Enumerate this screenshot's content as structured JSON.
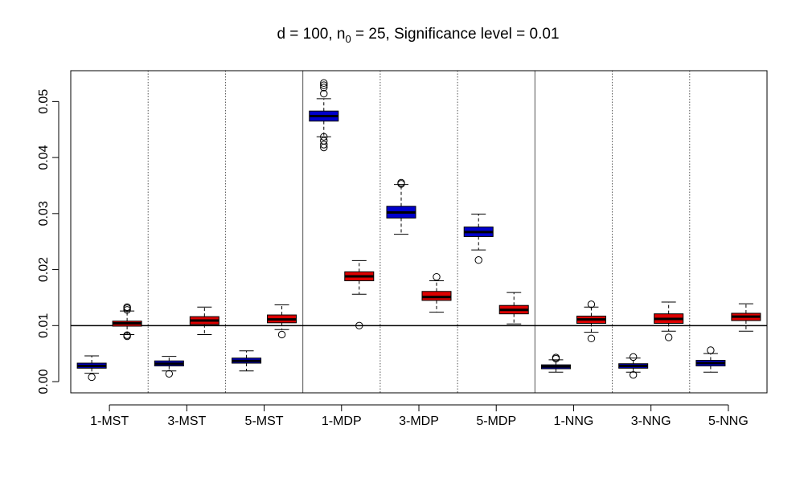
{
  "chart_data": {
    "type": "box",
    "title_parts": {
      "pre": "d = 100, n",
      "sub": "0",
      "post": " = 25, Significance level = 0.01"
    },
    "xlabel": "",
    "ylabel": "",
    "ylim": [
      -0.002,
      0.0555
    ],
    "yticks": [
      0.0,
      0.01,
      0.02,
      0.03,
      0.04,
      0.05
    ],
    "ytick_labels": [
      "0.00",
      "0.01",
      "0.02",
      "0.03",
      "0.04",
      "0.05"
    ],
    "categories": [
      "1-MST",
      "3-MST",
      "5-MST",
      "1-MDP",
      "3-MDP",
      "5-MDP",
      "1-NNG",
      "3-NNG",
      "5-NNG"
    ],
    "reference_line": 0.01,
    "grid": false,
    "series_colors": [
      "#0000cc",
      "#dd0000"
    ],
    "boxes": [
      {
        "category": "1-MST",
        "color": "#0000cc",
        "whisker_low": 0.0015,
        "q1": 0.0024,
        "median": 0.0028,
        "q3": 0.0033,
        "whisker_high": 0.0046,
        "outliers": [
          0.0008
        ]
      },
      {
        "category": "1-MST",
        "color": "#dd0000",
        "whisker_low": 0.0084,
        "q1": 0.0099,
        "median": 0.0104,
        "q3": 0.0108,
        "whisker_high": 0.0126,
        "outliers": [
          0.0081,
          0.0083,
          0.0128,
          0.0131,
          0.0133
        ]
      },
      {
        "category": "3-MST",
        "color": "#0000cc",
        "whisker_low": 0.0019,
        "q1": 0.0028,
        "median": 0.0032,
        "q3": 0.0037,
        "whisker_high": 0.0045,
        "outliers": [
          0.0014
        ]
      },
      {
        "category": "3-MST",
        "color": "#dd0000",
        "whisker_low": 0.0084,
        "q1": 0.0102,
        "median": 0.0109,
        "q3": 0.0116,
        "whisker_high": 0.0133,
        "outliers": []
      },
      {
        "category": "5-MST",
        "color": "#0000cc",
        "whisker_low": 0.0019,
        "q1": 0.0033,
        "median": 0.0037,
        "q3": 0.0042,
        "whisker_high": 0.0055,
        "outliers": []
      },
      {
        "category": "5-MST",
        "color": "#dd0000",
        "whisker_low": 0.0093,
        "q1": 0.0105,
        "median": 0.0111,
        "q3": 0.0119,
        "whisker_high": 0.0137,
        "outliers": [
          0.0084
        ]
      },
      {
        "category": "1-MDP",
        "color": "#0000cc",
        "whisker_low": 0.0437,
        "q1": 0.0465,
        "median": 0.0474,
        "q3": 0.0483,
        "whisker_high": 0.0505,
        "outliers": [
          0.0418,
          0.0423,
          0.043,
          0.0437,
          0.0514,
          0.0525,
          0.0529,
          0.0533
        ]
      },
      {
        "category": "1-MDP",
        "color": "#dd0000",
        "whisker_low": 0.0156,
        "q1": 0.018,
        "median": 0.0188,
        "q3": 0.0196,
        "whisker_high": 0.0216,
        "outliers": [
          0.01
        ]
      },
      {
        "category": "3-MDP",
        "color": "#0000cc",
        "whisker_low": 0.0263,
        "q1": 0.0292,
        "median": 0.0302,
        "q3": 0.0313,
        "whisker_high": 0.0352,
        "outliers": [
          0.0353,
          0.0355
        ]
      },
      {
        "category": "3-MDP",
        "color": "#dd0000",
        "whisker_low": 0.0124,
        "q1": 0.0145,
        "median": 0.0151,
        "q3": 0.0161,
        "whisker_high": 0.018,
        "outliers": [
          0.0187
        ]
      },
      {
        "category": "5-MDP",
        "color": "#0000cc",
        "whisker_low": 0.0235,
        "q1": 0.0259,
        "median": 0.0267,
        "q3": 0.0276,
        "whisker_high": 0.0299,
        "outliers": [
          0.0217
        ]
      },
      {
        "category": "5-MDP",
        "color": "#dd0000",
        "whisker_low": 0.0103,
        "q1": 0.0121,
        "median": 0.0128,
        "q3": 0.0136,
        "whisker_high": 0.0159,
        "outliers": []
      },
      {
        "category": "1-NNG",
        "color": "#0000cc",
        "whisker_low": 0.0017,
        "q1": 0.0023,
        "median": 0.0027,
        "q3": 0.003,
        "whisker_high": 0.0039,
        "outliers": [
          0.0041,
          0.0043
        ]
      },
      {
        "category": "1-NNG",
        "color": "#dd0000",
        "whisker_low": 0.0088,
        "q1": 0.0104,
        "median": 0.0111,
        "q3": 0.0117,
        "whisker_high": 0.0133,
        "outliers": [
          0.0077,
          0.0138
        ]
      },
      {
        "category": "3-NNG",
        "color": "#0000cc",
        "whisker_low": 0.0017,
        "q1": 0.0024,
        "median": 0.0028,
        "q3": 0.0032,
        "whisker_high": 0.0042,
        "outliers": [
          0.0012,
          0.0044
        ]
      },
      {
        "category": "3-NNG",
        "color": "#dd0000",
        "whisker_low": 0.009,
        "q1": 0.0104,
        "median": 0.0112,
        "q3": 0.0121,
        "whisker_high": 0.0142,
        "outliers": [
          0.0079
        ]
      },
      {
        "category": "5-NNG",
        "color": "#0000cc",
        "whisker_low": 0.0017,
        "q1": 0.0028,
        "median": 0.0033,
        "q3": 0.0038,
        "whisker_high": 0.005,
        "outliers": [
          0.0056
        ]
      },
      {
        "category": "5-NNG",
        "color": "#dd0000",
        "whisker_low": 0.009,
        "q1": 0.0109,
        "median": 0.0116,
        "q3": 0.0122,
        "whisker_high": 0.0139,
        "outliers": []
      }
    ]
  }
}
